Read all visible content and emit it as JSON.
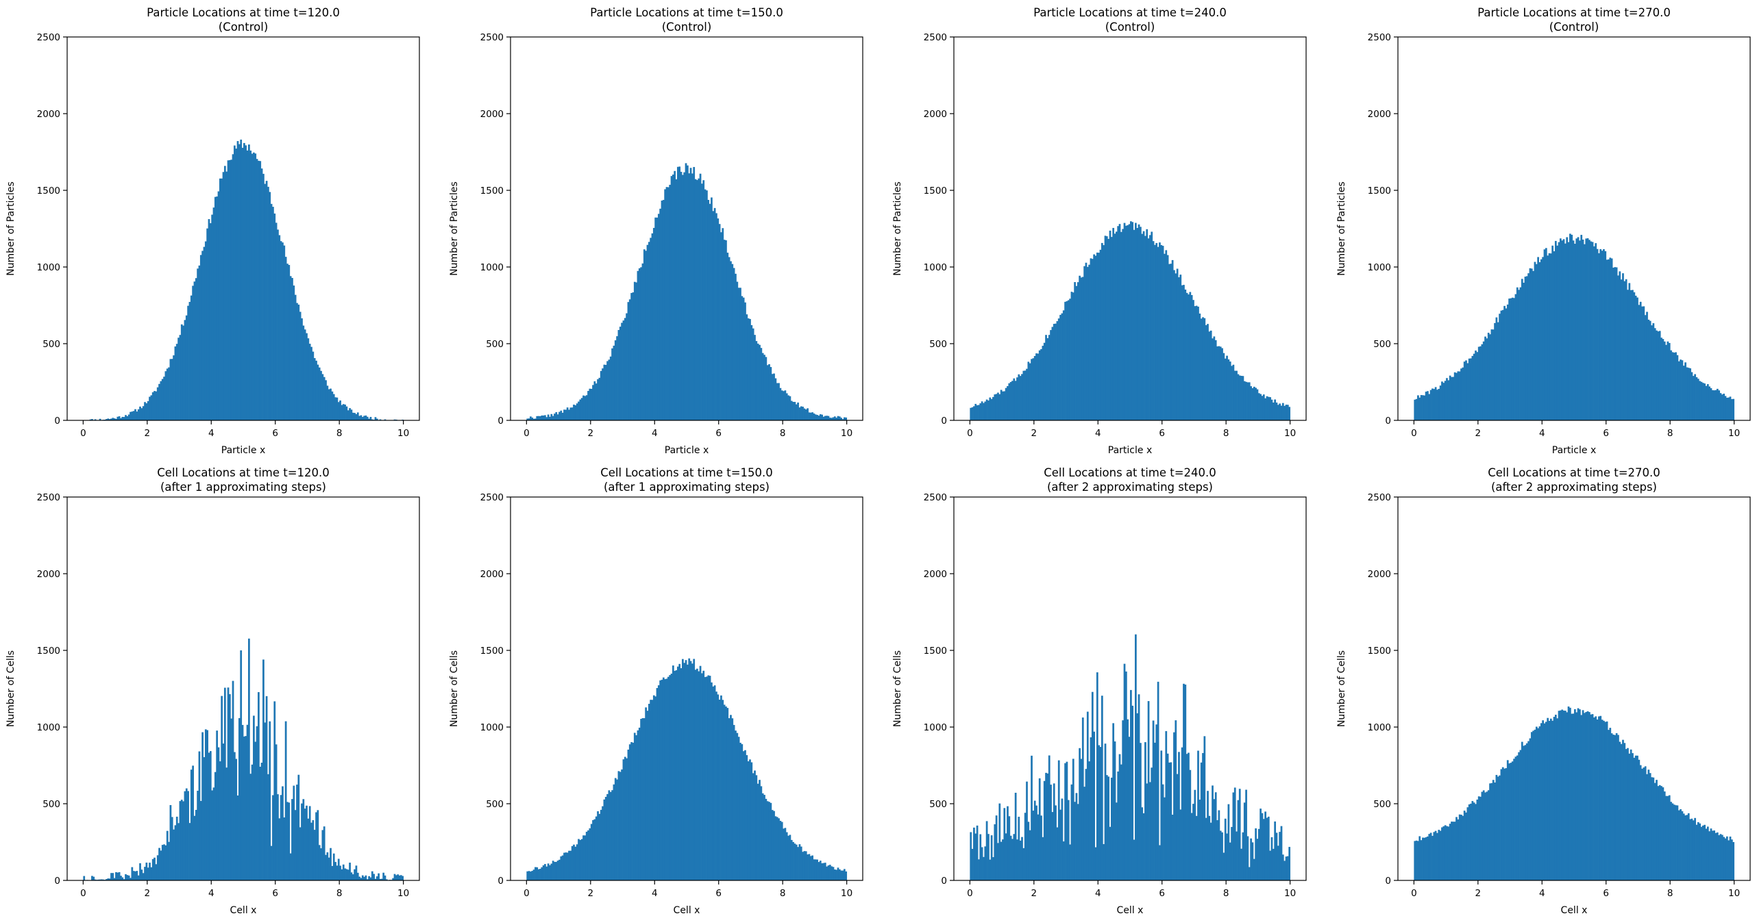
{
  "chart_data": [
    {
      "type": "bar",
      "title_line1": "Particle Locations at time t=120.0",
      "title_line2": "(Control)",
      "xlabel": "Particle x",
      "ylabel": "Number of Particles",
      "xlim": [
        -0.5,
        10.5
      ],
      "ylim": [
        0,
        2500
      ],
      "xticks": [
        0,
        2,
        4,
        6,
        8,
        10
      ],
      "yticks": [
        0,
        500,
        1000,
        1500,
        2000,
        2500
      ],
      "bins": {
        "start": 0,
        "end": 10,
        "count": 200
      },
      "shape": "gaussian",
      "center": 5.0,
      "sigma": 1.3,
      "peak": 1800,
      "floor": 0,
      "noise": 40,
      "bar_color": "#1f77b4",
      "seed": 11
    },
    {
      "type": "bar",
      "title_line1": "Particle Locations at time t=150.0",
      "title_line2": "(Control)",
      "xlabel": "Particle x",
      "ylabel": "Number of Particles",
      "xlim": [
        -0.5,
        10.5
      ],
      "ylim": [
        0,
        2500
      ],
      "xticks": [
        0,
        2,
        4,
        6,
        8,
        10
      ],
      "yticks": [
        0,
        500,
        1000,
        1500,
        2000,
        2500
      ],
      "bins": {
        "start": 0,
        "end": 10,
        "count": 200
      },
      "shape": "gaussian",
      "center": 5.0,
      "sigma": 1.45,
      "peak": 1630,
      "floor": 12,
      "noise": 40,
      "bar_color": "#1f77b4",
      "seed": 22
    },
    {
      "type": "bar",
      "title_line1": "Particle Locations at time t=240.0",
      "title_line2": "(Control)",
      "xlabel": "Particle x",
      "ylabel": "Number of Particles",
      "xlim": [
        -0.5,
        10.5
      ],
      "ylim": [
        0,
        2500
      ],
      "xticks": [
        0,
        2,
        4,
        6,
        8,
        10
      ],
      "yticks": [
        0,
        500,
        1000,
        1500,
        2000,
        2500
      ],
      "bins": {
        "start": 0,
        "end": 10,
        "count": 200
      },
      "shape": "gaussian",
      "center": 5.0,
      "sigma": 1.95,
      "peak": 1230,
      "floor": 40,
      "noise": 35,
      "bar_color": "#1f77b4",
      "seed": 33
    },
    {
      "type": "bar",
      "title_line1": "Particle Locations at time t=270.0",
      "title_line2": "(Control)",
      "xlabel": "Particle x",
      "ylabel": "Number of Particles",
      "xlim": [
        -0.5,
        10.5
      ],
      "ylim": [
        0,
        2500
      ],
      "xticks": [
        0,
        2,
        4,
        6,
        8,
        10
      ],
      "yticks": [
        0,
        500,
        1000,
        1500,
        2000,
        2500
      ],
      "bins": {
        "start": 0,
        "end": 10,
        "count": 200
      },
      "shape": "gaussian",
      "center": 5.0,
      "sigma": 2.1,
      "peak": 1110,
      "floor": 75,
      "noise": 35,
      "bar_color": "#1f77b4",
      "seed": 44
    },
    {
      "type": "bar",
      "title_line1": "Cell Locations at time t=120.0",
      "title_line2": "(after 1 approximating steps)",
      "xlabel": "Cell x",
      "ylabel": "Number of Cells",
      "xlim": [
        -0.5,
        10.5
      ],
      "ylim": [
        0,
        2500
      ],
      "xticks": [
        0,
        2,
        4,
        6,
        8,
        10
      ],
      "yticks": [
        0,
        500,
        1000,
        1500,
        2000,
        2500
      ],
      "bins": {
        "start": 0,
        "end": 10,
        "count": 200
      },
      "shape": "spiky",
      "center": 5.0,
      "sigma": 1.4,
      "peak": 1350,
      "floor": 0,
      "noise": 230,
      "bar_color": "#1f77b4",
      "seed": 55
    },
    {
      "type": "bar",
      "title_line1": "Cell Locations at time t=150.0",
      "title_line2": "(after 1 approximating steps)",
      "xlabel": "Cell x",
      "ylabel": "Number of Cells",
      "xlim": [
        -0.5,
        10.5
      ],
      "ylim": [
        0,
        2500
      ],
      "xticks": [
        0,
        2,
        4,
        6,
        8,
        10
      ],
      "yticks": [
        0,
        500,
        1000,
        1500,
        2000,
        2500
      ],
      "bins": {
        "start": 0,
        "end": 10,
        "count": 200
      },
      "shape": "gaussian",
      "center": 5.0,
      "sigma": 1.75,
      "peak": 1380,
      "floor": 40,
      "noise": 35,
      "bar_color": "#1f77b4",
      "seed": 66
    },
    {
      "type": "bar",
      "title_line1": "Cell Locations at time t=240.0",
      "title_line2": "(after 2 approximating steps)",
      "xlabel": "Cell x",
      "ylabel": "Number of Cells",
      "xlim": [
        -0.5,
        10.5
      ],
      "ylim": [
        0,
        2500
      ],
      "xticks": [
        0,
        2,
        4,
        6,
        8,
        10
      ],
      "yticks": [
        0,
        500,
        1000,
        1500,
        2000,
        2500
      ],
      "bins": {
        "start": 0,
        "end": 10,
        "count": 200
      },
      "shape": "spiky",
      "center": 5.0,
      "sigma": 2.2,
      "peak": 880,
      "floor": 160,
      "noise": 420,
      "bar_color": "#1f77b4",
      "seed": 77
    },
    {
      "type": "bar",
      "title_line1": "Cell Locations at time t=270.0",
      "title_line2": "(after 2 approximating steps)",
      "xlabel": "Cell x",
      "ylabel": "Number of Cells",
      "xlim": [
        -0.5,
        10.5
      ],
      "ylim": [
        0,
        2500
      ],
      "xticks": [
        0,
        2,
        4,
        6,
        8,
        10
      ],
      "yticks": [
        0,
        500,
        1000,
        1500,
        2000,
        2500
      ],
      "bins": {
        "start": 0,
        "end": 10,
        "count": 200
      },
      "shape": "gaussian",
      "center": 5.0,
      "sigma": 2.1,
      "peak": 900,
      "floor": 210,
      "noise": 30,
      "bar_color": "#1f77b4",
      "seed": 88
    }
  ]
}
